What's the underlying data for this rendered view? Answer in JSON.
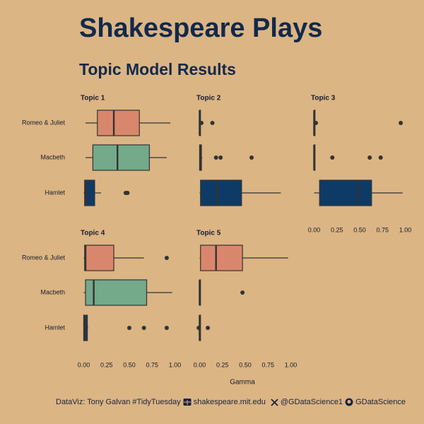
{
  "title": "Shakespeare Plays",
  "subtitle": "Topic Model Results",
  "x_label": "Gamma",
  "caption": [
    "DataViz: Tony Galvan #TidyTuesday",
    "shakespeare.mit.edu",
    "@GDataScience1",
    "GDataScience"
  ],
  "chart_data": [
    {
      "type": "box",
      "title": "Topic 1",
      "categories": [
        "Romeo & Juliet",
        "Macbeth",
        "Hamlet"
      ],
      "colors": [
        "#d9876c",
        "#74a98a",
        "#0d3b66"
      ],
      "xlim": [
        -0.05,
        1.05
      ],
      "boxes": [
        {
          "min": 0.02,
          "q1": 0.15,
          "median": 0.33,
          "q3": 0.61,
          "max": 0.95,
          "outliers": []
        },
        {
          "min": 0.02,
          "q1": 0.1,
          "median": 0.37,
          "q3": 0.72,
          "max": 0.91,
          "outliers": []
        },
        {
          "min": 0.0,
          "q1": 0.01,
          "median": 0.03,
          "q3": 0.12,
          "max": 0.19,
          "outliers": [
            0.46,
            0.48
          ]
        }
      ]
    },
    {
      "type": "box",
      "title": "Topic 2",
      "categories": [
        "Romeo & Juliet",
        "Macbeth",
        "Hamlet"
      ],
      "colors": [
        "#d9876c",
        "#74a98a",
        "#0d3b66"
      ],
      "xlim": [
        -0.05,
        1.05
      ],
      "boxes": [
        {
          "min": 0.0,
          "q1": 0.0,
          "median": 0.0,
          "q3": 0.01,
          "max": 0.01,
          "outliers": [
            0.02,
            0.14
          ]
        },
        {
          "min": 0.0,
          "q1": 0.0,
          "median": 0.01,
          "q3": 0.02,
          "max": 0.03,
          "outliers": [
            0.18,
            0.23,
            0.57
          ]
        },
        {
          "min": 0.0,
          "q1": 0.01,
          "median": 0.19,
          "q3": 0.46,
          "max": 0.89,
          "outliers": []
        }
      ]
    },
    {
      "type": "box",
      "title": "Topic 3",
      "categories": [
        "Romeo & Juliet",
        "Macbeth",
        "Hamlet"
      ],
      "colors": [
        "#d9876c",
        "#74a98a",
        "#0d3b66"
      ],
      "xlim": [
        -0.05,
        1.05
      ],
      "xticks": [
        {
          "value": 0,
          "label": "0.00"
        },
        {
          "value": 0.25,
          "label": "0.25"
        },
        {
          "value": 0.5,
          "label": "0.50"
        },
        {
          "value": 0.75,
          "label": "0.75"
        },
        {
          "value": 1,
          "label": "1.00"
        }
      ],
      "boxes": [
        {
          "min": 0.0,
          "q1": 0.0,
          "median": 0.0,
          "q3": 0.01,
          "max": 0.01,
          "outliers": [
            0.02,
            0.95
          ]
        },
        {
          "min": 0.0,
          "q1": 0.0,
          "median": 0.0,
          "q3": 0.01,
          "max": 0.01,
          "outliers": [
            0.2,
            0.61,
            0.73
          ]
        },
        {
          "min": 0.0,
          "q1": 0.06,
          "median": 0.48,
          "q3": 0.63,
          "max": 0.97,
          "outliers": []
        }
      ]
    },
    {
      "type": "box",
      "title": "Topic 4",
      "categories": [
        "Romeo & Juliet",
        "Macbeth",
        "Hamlet"
      ],
      "colors": [
        "#d9876c",
        "#74a98a",
        "#0d3b66"
      ],
      "xlim": [
        -0.05,
        1.05
      ],
      "xticks": [
        {
          "value": 0,
          "label": "0.00"
        },
        {
          "value": 0.25,
          "label": "0.25"
        },
        {
          "value": 0.5,
          "label": "0.50"
        },
        {
          "value": 0.75,
          "label": "0.75"
        },
        {
          "value": 1,
          "label": "1.00"
        }
      ],
      "boxes": [
        {
          "min": 0.0,
          "q1": 0.01,
          "median": 0.02,
          "q3": 0.33,
          "max": 0.66,
          "outliers": [
            0.91
          ]
        },
        {
          "min": 0.0,
          "q1": 0.02,
          "median": 0.11,
          "q3": 0.69,
          "max": 0.97,
          "outliers": []
        },
        {
          "min": 0.0,
          "q1": 0.0,
          "median": 0.02,
          "q3": 0.04,
          "max": 0.05,
          "outliers": [
            0.5,
            0.66,
            0.91
          ]
        }
      ]
    },
    {
      "type": "box",
      "title": "Topic 5",
      "categories": [
        "Romeo & Juliet",
        "Macbeth",
        "Hamlet"
      ],
      "colors": [
        "#d9876c",
        "#74a98a",
        "#0d3b66"
      ],
      "xlim": [
        -0.05,
        1.05
      ],
      "xticks": [
        {
          "value": 0,
          "label": "0.00"
        },
        {
          "value": 0.25,
          "label": "0.25"
        },
        {
          "value": 0.5,
          "label": "0.50"
        },
        {
          "value": 0.75,
          "label": "0.75"
        },
        {
          "value": 1,
          "label": "1.00"
        }
      ],
      "boxes": [
        {
          "min": 0.0,
          "q1": 0.01,
          "median": 0.18,
          "q3": 0.47,
          "max": 0.97,
          "outliers": []
        },
        {
          "min": 0.0,
          "q1": 0.0,
          "median": 0.0,
          "q3": 0.01,
          "max": 0.01,
          "outliers": [
            0.47
          ]
        },
        {
          "min": 0.0,
          "q1": 0.0,
          "median": 0.0,
          "q3": 0.01,
          "max": 0.01,
          "outliers": [
            -0.01,
            0.09
          ]
        }
      ]
    }
  ]
}
